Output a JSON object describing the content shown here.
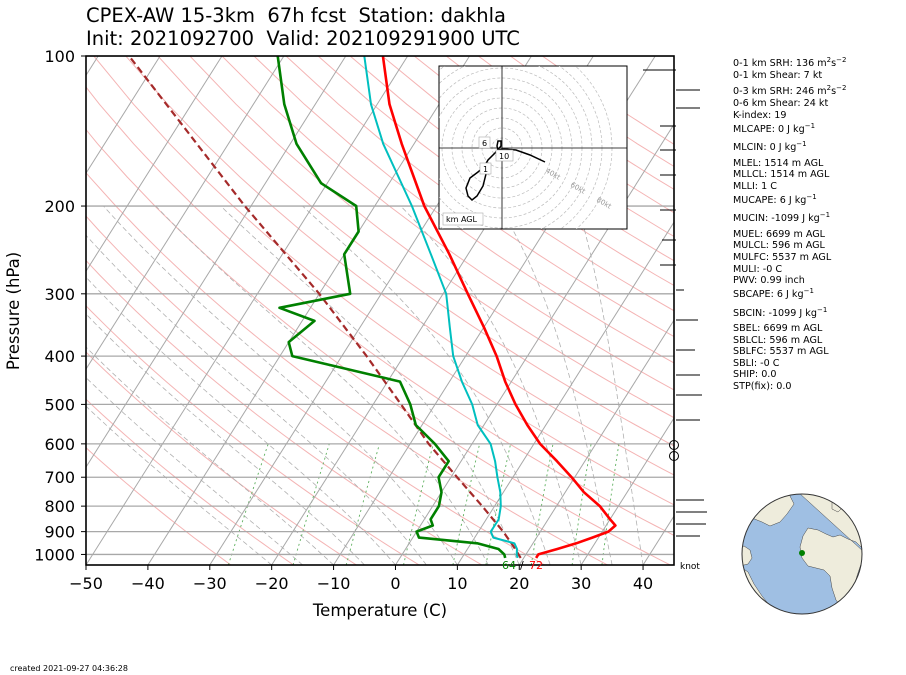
{
  "header": {
    "title_line1": "CPEX-AW 15-3km  67h fcst  Station: dakhla",
    "title_line2": "Init: 2021092700  Valid: 202109291900 UTC"
  },
  "footer": {
    "created": "created 2021-09-27 04:36:28"
  },
  "hodograph": {
    "label": "km AGL",
    "ring_labels": [
      "40kt",
      "60kt",
      "80kt"
    ],
    "height_labels": [
      "6",
      "10",
      "1"
    ]
  },
  "wind_barbs": {
    "unit_label": "knot"
  },
  "stats": [
    {
      "text": "0-1 km SRH: 136 m",
      "sup": "2",
      "text2": "s",
      "sup2": "−2"
    },
    {
      "text": "0-1 km Shear: 7 kt"
    },
    {
      "text": "0-3 km SRH: 246 m",
      "sup": "2",
      "text2": "s",
      "sup2": "−2"
    },
    {
      "text": "0-6 km Shear: 24 kt"
    },
    {
      "text": "K-index: 19"
    },
    {
      "text": "MLCAPE: 0 J kg",
      "sup": "−1"
    },
    {
      "text": "MLCIN: 0 J kg",
      "sup": "−1"
    },
    {
      "text": "MLEL: 1514 m AGL"
    },
    {
      "text": "MLLCL: 1514 m AGL"
    },
    {
      "text": "MLLI: 1 C"
    },
    {
      "text": "MUCAPE: 6 J kg",
      "sup": "−1"
    },
    {
      "text": "MUCIN: -1099 J kg",
      "sup": "−1"
    },
    {
      "text": "MUEL: 6699 m AGL"
    },
    {
      "text": "MULCL: 596 m AGL"
    },
    {
      "text": "MULFC: 5537 m AGL"
    },
    {
      "text": "MULI: -0 C"
    },
    {
      "text": "PWV: 0.99 inch"
    },
    {
      "text": "SBCAPE: 6 J kg",
      "sup": "−1"
    },
    {
      "text": "SBCIN: -1099 J kg",
      "sup": "−1"
    },
    {
      "text": "SBEL: 6699 m AGL"
    },
    {
      "text": "SBLCL: 596 m AGL"
    },
    {
      "text": "SBLFC: 5537 m AGL"
    },
    {
      "text": "SBLI: -0 C"
    },
    {
      "text": "SHIP: 0.0"
    },
    {
      "text": "STP(fix): 0.0"
    }
  ],
  "chart_data": {
    "type": "line",
    "diagram": "skew-T log-p",
    "xlabel": "Temperature (C)",
    "ylabel": "Pressure (hPa)",
    "xlim": [
      -50,
      45
    ],
    "ylim": [
      1050,
      100
    ],
    "y_scale": "log",
    "xticks": [
      -50,
      -40,
      -30,
      -20,
      -10,
      0,
      10,
      20,
      30,
      40
    ],
    "xtick_labels": [
      "−50",
      "−40",
      "−30",
      "−20",
      "−10",
      "0",
      "10",
      "20",
      "30",
      "40"
    ],
    "yticks": [
      100,
      200,
      300,
      400,
      500,
      600,
      700,
      800,
      900,
      1000
    ],
    "ytick_labels": [
      "100",
      "200",
      "300",
      "400",
      "500",
      "600",
      "700",
      "800",
      "900",
      "1000"
    ],
    "surface_labels": {
      "dewpoint_f": "64",
      "separator": "/",
      "temperature_f": "72"
    },
    "colors": {
      "temperature": "#ff0000",
      "dewpoint": "#008000",
      "wetbulb": "#00bfbf",
      "parcel": "#a52a2a"
    },
    "series": [
      {
        "key": "temperature",
        "points": [
          [
            1016,
            22
          ],
          [
            1000,
            22
          ],
          [
            975,
            24.5
          ],
          [
            950,
            27
          ],
          [
            925,
            29
          ],
          [
            900,
            31
          ],
          [
            875,
            31.5
          ],
          [
            850,
            30
          ],
          [
            800,
            27
          ],
          [
            750,
            23
          ],
          [
            700,
            19.5
          ],
          [
            650,
            15.5
          ],
          [
            600,
            11
          ],
          [
            550,
            7
          ],
          [
            500,
            3
          ],
          [
            450,
            -1
          ],
          [
            400,
            -5
          ],
          [
            350,
            -10
          ],
          [
            300,
            -16
          ],
          [
            250,
            -23
          ],
          [
            200,
            -32
          ],
          [
            150,
            -42
          ],
          [
            125,
            -48
          ],
          [
            100,
            -54
          ]
        ]
      },
      {
        "key": "dewpoint",
        "points": [
          [
            1016,
            17
          ],
          [
            1000,
            16.5
          ],
          [
            975,
            15
          ],
          [
            950,
            11
          ],
          [
            925,
            1
          ],
          [
            900,
            0
          ],
          [
            875,
            2
          ],
          [
            850,
            1
          ],
          [
            800,
            1
          ],
          [
            750,
            0
          ],
          [
            700,
            -2
          ],
          [
            650,
            -2
          ],
          [
            600,
            -6
          ],
          [
            550,
            -11
          ],
          [
            500,
            -14
          ],
          [
            450,
            -18
          ],
          [
            400,
            -38
          ],
          [
            375,
            -40
          ],
          [
            340,
            -38
          ],
          [
            320,
            -45
          ],
          [
            300,
            -35
          ],
          [
            250,
            -40
          ],
          [
            225,
            -40
          ],
          [
            200,
            -43
          ],
          [
            180,
            -51
          ],
          [
            150,
            -59
          ],
          [
            125,
            -65
          ],
          [
            100,
            -71
          ]
        ]
      },
      {
        "key": "wetbulb",
        "points": [
          [
            1016,
            19
          ],
          [
            1000,
            18.5
          ],
          [
            975,
            18
          ],
          [
            950,
            17
          ],
          [
            925,
            13
          ],
          [
            900,
            12
          ],
          [
            875,
            12
          ],
          [
            850,
            12
          ],
          [
            800,
            11
          ],
          [
            750,
            9.5
          ],
          [
            700,
            7.5
          ],
          [
            650,
            5.5
          ],
          [
            600,
            3
          ],
          [
            550,
            -1
          ],
          [
            500,
            -4
          ],
          [
            450,
            -8
          ],
          [
            400,
            -12
          ],
          [
            350,
            -15.5
          ],
          [
            300,
            -19.5
          ],
          [
            250,
            -26
          ],
          [
            200,
            -34
          ],
          [
            150,
            -45
          ],
          [
            125,
            -51
          ],
          [
            100,
            -57
          ]
        ]
      },
      {
        "key": "parcel",
        "points": [
          [
            1016,
            19.5
          ],
          [
            960,
            17
          ],
          [
            900,
            14
          ],
          [
            800,
            8
          ],
          [
            700,
            1
          ],
          [
            600,
            -7
          ],
          [
            500,
            -15.5
          ],
          [
            400,
            -26
          ],
          [
            300,
            -40
          ],
          [
            200,
            -61
          ],
          [
            100,
            -95
          ]
        ]
      }
    ]
  }
}
